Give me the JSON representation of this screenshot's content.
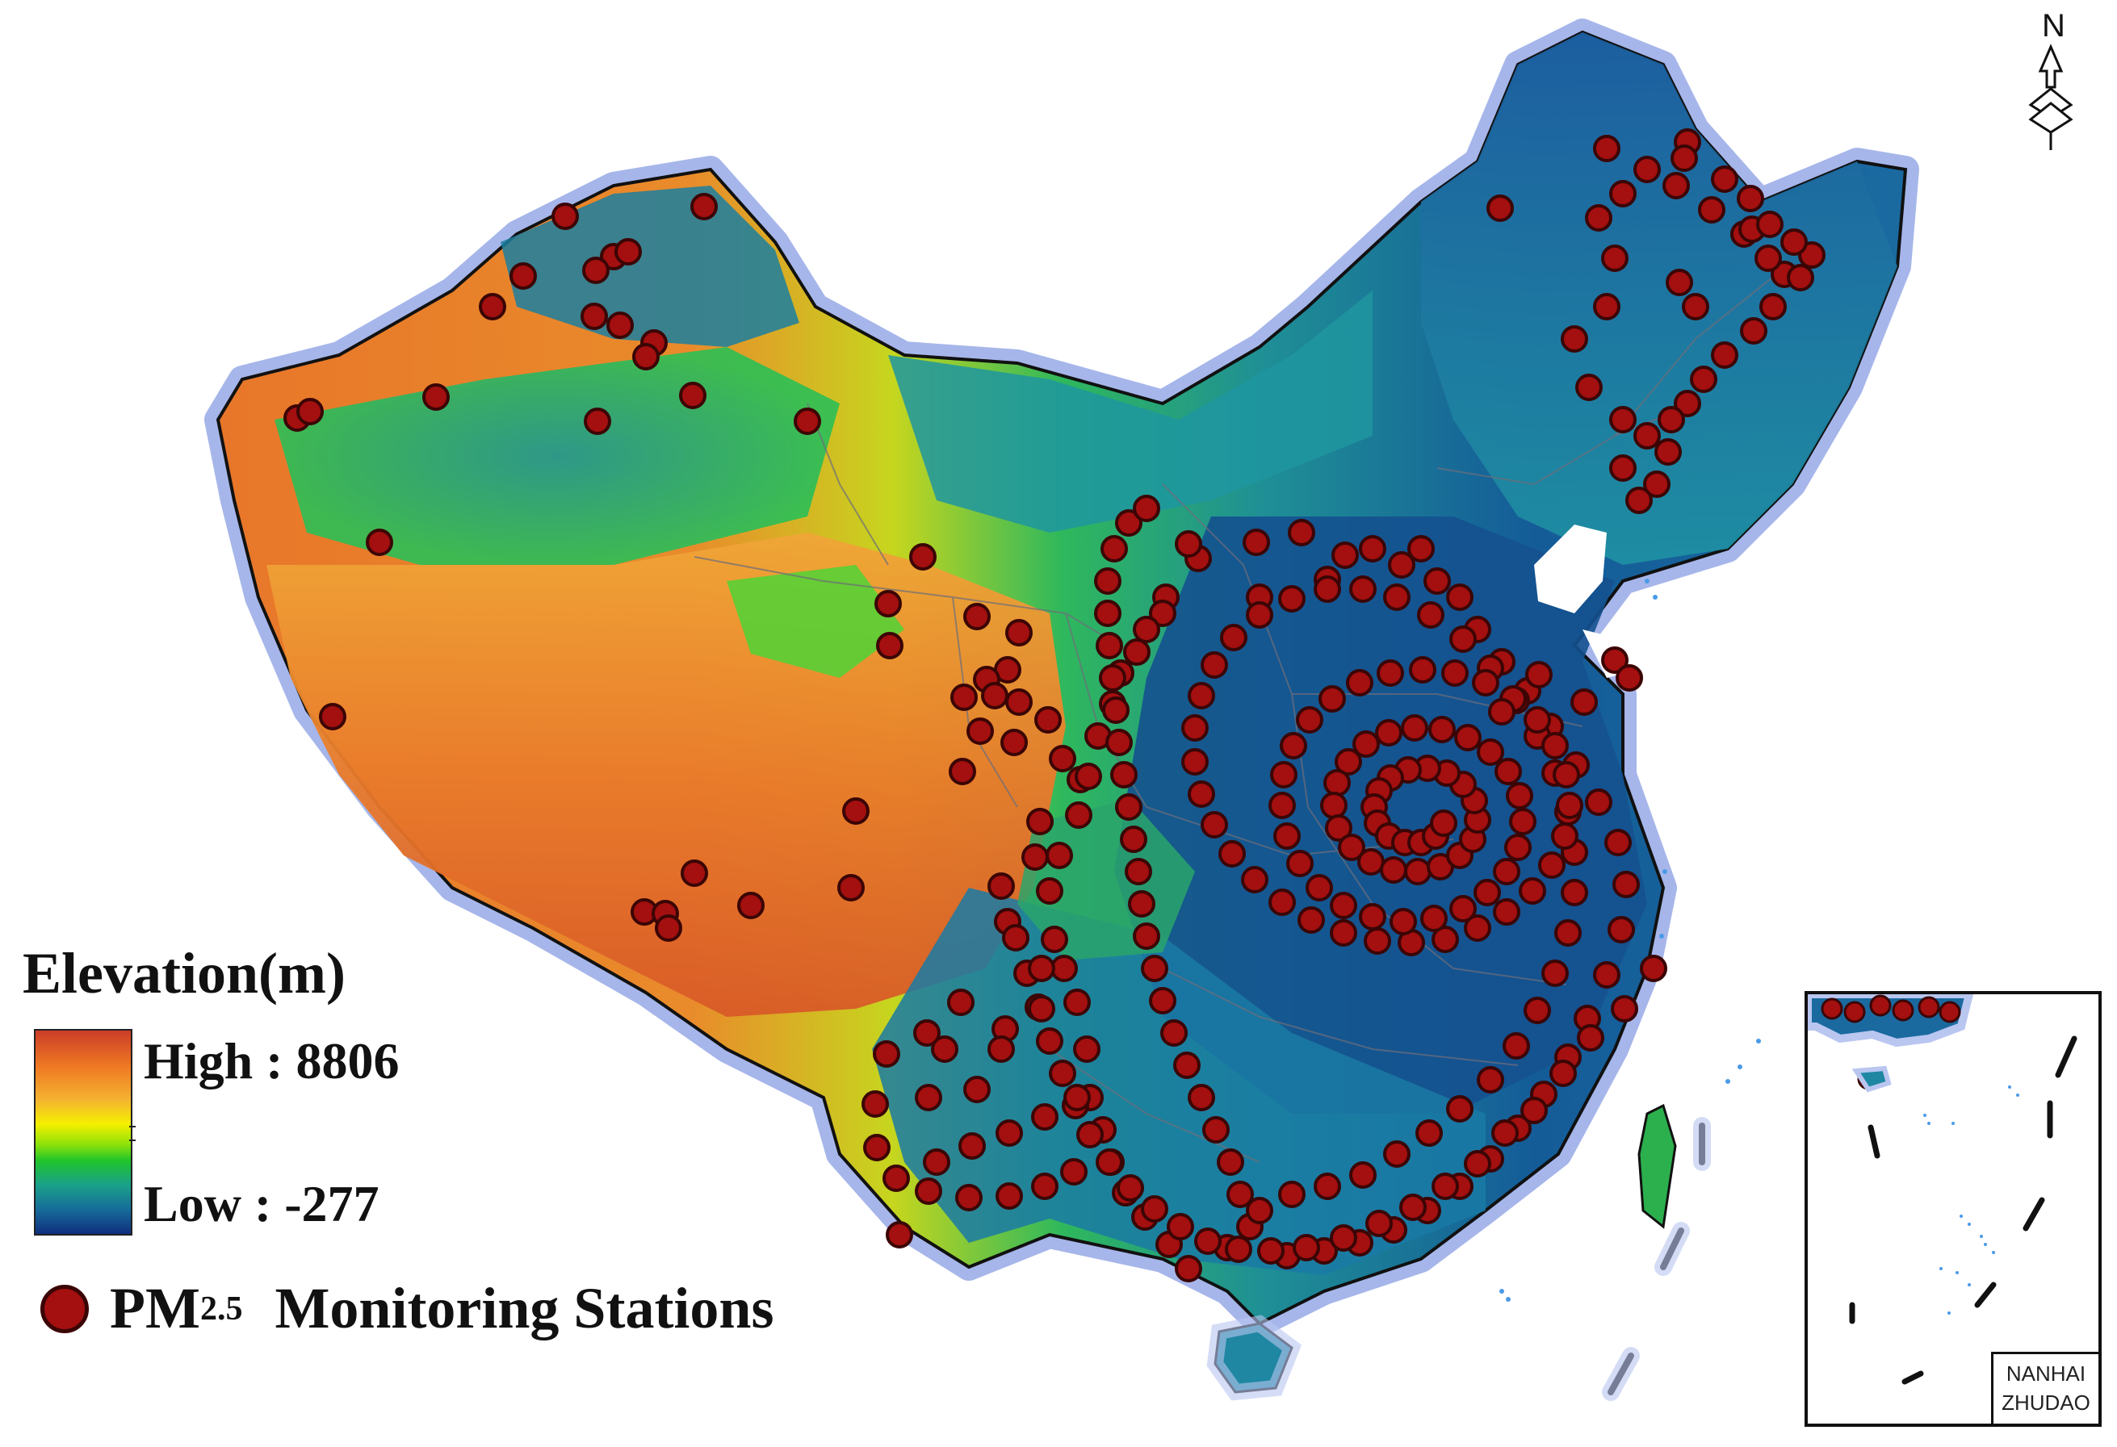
{
  "legend": {
    "title": "Elevation(m)",
    "high_label": "High : 8806",
    "low_label": "Low : -277",
    "stations_label_pm": "PM",
    "stations_label_sub": "2.5",
    "stations_label_rest": "Monitoring Stations"
  },
  "north_arrow": {
    "letter": "N"
  },
  "inset": {
    "line1": "NANHAI",
    "line2": "ZHUDAO"
  },
  "colors": {
    "station_fill": "#a40f0f",
    "station_stroke": "#3b0505",
    "border_halo": "#a9b8ef",
    "water_blue": "#4a9ae8"
  },
  "map_layers": [
    "elevation-raster",
    "province-boundaries",
    "pm25-stations",
    "nine-dash-line"
  ]
}
